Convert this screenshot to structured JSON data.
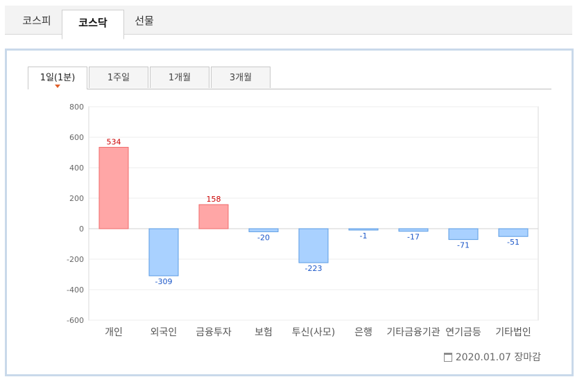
{
  "market_tabs": [
    "코스피",
    "코스닥",
    "선물"
  ],
  "active_market_tab": "코스닥",
  "period_tabs": [
    "1일(1분)",
    "1주일",
    "1개월",
    "3개월"
  ],
  "active_period_tab": "1일(1분)",
  "footer": {
    "date_text": "2020.01.07 장마감"
  },
  "colors": {
    "positive_fill": "#ffa6a6",
    "positive_stroke": "#ef6b6b",
    "positive_label": "#cc0000",
    "negative_fill": "#a9d1ff",
    "negative_stroke": "#5a9be3",
    "negative_label": "#1a56c8",
    "panel_border": "#c9d9ea"
  },
  "icons": [
    "calendar-icon",
    "active-tab-arrow-icon"
  ],
  "chart_data": {
    "type": "bar",
    "categories": [
      "개인",
      "외국인",
      "금융투자",
      "보험",
      "투신(사모)",
      "은행",
      "기타금융기관",
      "연기금등",
      "기타법인"
    ],
    "values": [
      534,
      -309,
      158,
      -20,
      -223,
      -1,
      -17,
      -71,
      -51
    ],
    "ylim": [
      -600,
      800
    ],
    "yticks": [
      -600,
      -400,
      -200,
      0,
      200,
      400,
      600,
      800
    ],
    "grid": true,
    "legend": "none"
  }
}
